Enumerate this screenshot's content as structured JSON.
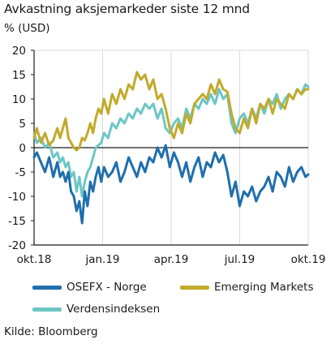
{
  "header": {
    "title": "Avkastning aksjemarkeder siste 12 mnd",
    "unit": "% (USD)"
  },
  "footer": {
    "source": "Kilde: Bloomberg"
  },
  "chart_data": {
    "type": "line",
    "ylim": [
      -20,
      20
    ],
    "yticks": [
      20,
      15,
      10,
      5,
      0,
      -5,
      -10,
      -15,
      -20
    ],
    "ytick_labels": [
      "20",
      "15",
      "10",
      "5",
      "0",
      "-5",
      "-10",
      "-15",
      "-20"
    ],
    "x_ticks": [
      "okt.18",
      "jan.19",
      "apr.19",
      "jul.19",
      "okt.19"
    ],
    "grid": "vertical",
    "zero_line": true,
    "legend_position": "bottom",
    "colors": {
      "grid": "#d9d9d9",
      "axis": "#1a1a1a"
    },
    "series": [
      {
        "name": "OSEFX - Norge",
        "color": "#1f6fae",
        "x": [
          0,
          0.01,
          0.025,
          0.04,
          0.055,
          0.07,
          0.085,
          0.095,
          0.105,
          0.115,
          0.125,
          0.135,
          0.145,
          0.155,
          0.165,
          0.175,
          0.185,
          0.195,
          0.205,
          0.215,
          0.225,
          0.235,
          0.245,
          0.255,
          0.27,
          0.285,
          0.3,
          0.315,
          0.33,
          0.345,
          0.36,
          0.375,
          0.39,
          0.405,
          0.42,
          0.435,
          0.45,
          0.465,
          0.48,
          0.495,
          0.51,
          0.525,
          0.54,
          0.555,
          0.57,
          0.585,
          0.6,
          0.615,
          0.63,
          0.645,
          0.66,
          0.675,
          0.69,
          0.705,
          0.72,
          0.735,
          0.75,
          0.765,
          0.78,
          0.795,
          0.81,
          0.825,
          0.84,
          0.855,
          0.87,
          0.885,
          0.9,
          0.915,
          0.93,
          0.945,
          0.96,
          0.975,
          0.99,
          1.0
        ],
        "y": [
          -2,
          -1,
          -3,
          -5,
          -2,
          -6,
          -3,
          -6,
          -5,
          -7,
          -5,
          -9,
          -10,
          -13,
          -11,
          -15.5,
          -9,
          -12,
          -7,
          -9,
          -6,
          -4,
          -7,
          -4,
          -6,
          -5,
          -3,
          -7,
          -5,
          -2,
          -4,
          -6,
          -3,
          -5,
          -2,
          -3,
          0,
          -2,
          0.5,
          -4,
          -1,
          -3,
          -6,
          -3,
          -7,
          -4,
          -2,
          -6,
          -3,
          -4,
          -1,
          -3,
          -1.5,
          -5,
          -10,
          -7,
          -12,
          -9,
          -10,
          -8,
          -11,
          -9,
          -8,
          -6,
          -9,
          -5,
          -6,
          -8,
          -4,
          -7,
          -5,
          -4,
          -6,
          -5.5
        ]
      },
      {
        "name": "Emerging Markets",
        "color": "#c2aa2a",
        "x": [
          0,
          0.01,
          0.025,
          0.04,
          0.055,
          0.07,
          0.085,
          0.095,
          0.105,
          0.115,
          0.125,
          0.135,
          0.145,
          0.155,
          0.165,
          0.175,
          0.185,
          0.195,
          0.205,
          0.215,
          0.225,
          0.235,
          0.245,
          0.255,
          0.27,
          0.285,
          0.3,
          0.315,
          0.33,
          0.345,
          0.36,
          0.375,
          0.39,
          0.405,
          0.42,
          0.435,
          0.45,
          0.465,
          0.48,
          0.495,
          0.51,
          0.525,
          0.54,
          0.555,
          0.57,
          0.585,
          0.6,
          0.615,
          0.63,
          0.645,
          0.66,
          0.675,
          0.69,
          0.705,
          0.72,
          0.735,
          0.75,
          0.765,
          0.78,
          0.795,
          0.81,
          0.825,
          0.84,
          0.855,
          0.87,
          0.885,
          0.9,
          0.915,
          0.93,
          0.945,
          0.96,
          0.975,
          0.99,
          1.0
        ],
        "y": [
          2,
          4,
          1,
          3,
          0.5,
          1.5,
          4,
          2,
          4,
          6,
          2,
          1,
          0,
          -0.5,
          0,
          2,
          1.5,
          3,
          5,
          3,
          6,
          8,
          7,
          10,
          7,
          11,
          9,
          12,
          10,
          13,
          12,
          15.5,
          14,
          15,
          12,
          14,
          10,
          11,
          8,
          4,
          2,
          5,
          3,
          7,
          5,
          9,
          10,
          11,
          10,
          13,
          11,
          14,
          12,
          11.5,
          7,
          4,
          3,
          6,
          4,
          8,
          5,
          9,
          8,
          10,
          7,
          10,
          9,
          8,
          11,
          10,
          12,
          11,
          12,
          12
        ]
      },
      {
        "name": "Verdensindeksen",
        "color": "#6cc6c4",
        "x": [
          0,
          0.01,
          0.025,
          0.04,
          0.055,
          0.07,
          0.085,
          0.095,
          0.105,
          0.115,
          0.125,
          0.135,
          0.145,
          0.155,
          0.165,
          0.175,
          0.185,
          0.195,
          0.205,
          0.215,
          0.225,
          0.235,
          0.245,
          0.255,
          0.27,
          0.285,
          0.3,
          0.315,
          0.33,
          0.345,
          0.36,
          0.375,
          0.39,
          0.405,
          0.42,
          0.435,
          0.45,
          0.465,
          0.48,
          0.495,
          0.51,
          0.525,
          0.54,
          0.555,
          0.57,
          0.585,
          0.6,
          0.615,
          0.63,
          0.645,
          0.66,
          0.675,
          0.69,
          0.705,
          0.72,
          0.735,
          0.75,
          0.765,
          0.78,
          0.795,
          0.81,
          0.825,
          0.84,
          0.855,
          0.87,
          0.885,
          0.9,
          0.915,
          0.93,
          0.945,
          0.96,
          0.975,
          0.99,
          1.0
        ],
        "y": [
          3,
          1,
          2,
          0,
          1,
          -2,
          -1,
          -3,
          -2,
          -4,
          -3,
          -6,
          -5,
          -9,
          -6,
          -10,
          -7,
          -5,
          -4,
          -2,
          0,
          0.5,
          1,
          3,
          2,
          5,
          4,
          6,
          5,
          7,
          6,
          8,
          7,
          9,
          8,
          9,
          6,
          8,
          4,
          3,
          5,
          6,
          4,
          8,
          6,
          9,
          8,
          10,
          9,
          11,
          9,
          12,
          10,
          11,
          5,
          3,
          6,
          7,
          5,
          8,
          6,
          9,
          7,
          10,
          9,
          11,
          8,
          10,
          11,
          10,
          12,
          11,
          13,
          12.5
        ]
      }
    ]
  }
}
